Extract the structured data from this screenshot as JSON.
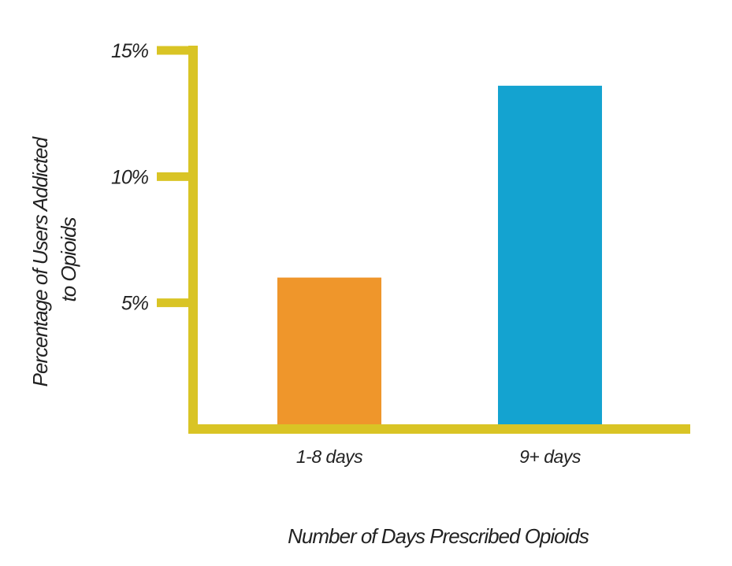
{
  "chart_data": {
    "type": "bar",
    "categories": [
      "1-8 days",
      "9+ days"
    ],
    "values": [
      6,
      13.6
    ],
    "ylim": [
      0,
      15
    ],
    "yticks": [
      5,
      10,
      15
    ],
    "ytick_labels": [
      "5%",
      "10%",
      "15%"
    ],
    "xlabel": "Number of Days Prescribed Opioids",
    "ylabel_lines": [
      "Percentage of Users Addicted",
      "to Opioids"
    ],
    "bar_colors": [
      "#ef962b",
      "#14a3d0"
    ],
    "axis_color": "#d9c425",
    "grid": false,
    "legend": "none"
  }
}
